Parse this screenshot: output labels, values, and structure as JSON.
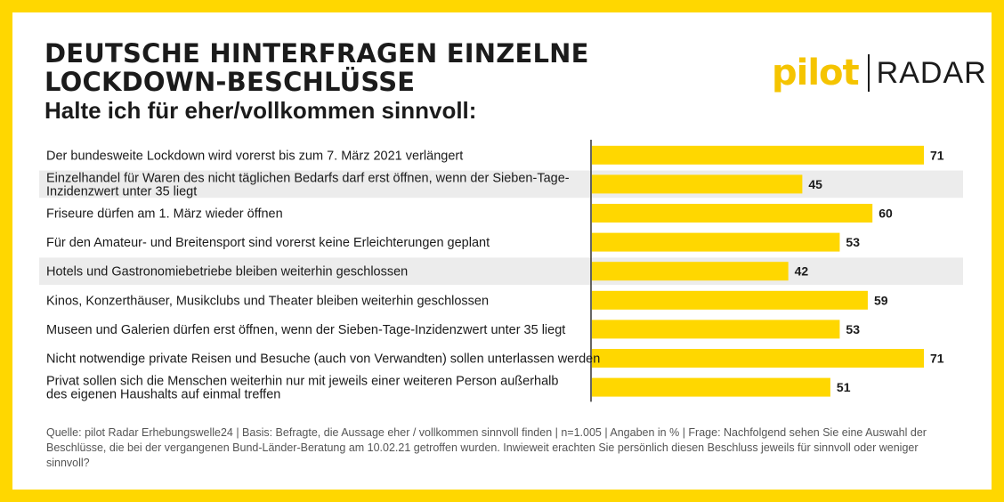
{
  "title": "DEUTSCHE HINTERFRAGEN EINZELNE LOCKDOWN-BESCHLÜSSE",
  "subtitle": "Halte ich für eher/vollkommen sinnvoll:",
  "logo": {
    "brand": "pilot",
    "product": "RADAR"
  },
  "footer": "Quelle: pilot Radar Erhebungswelle24 | Basis: Befragte, die Aussage eher / vollkommen sinnvoll finden | n=1.005 | Angaben in % | Frage: Nachfolgend sehen Sie eine Auswahl der Beschlüsse, die bei der vergangenen Bund-Länder-Beratung am 10.02.21 getroffen wurden. Inwieweit erachten Sie persönlich diesen Beschluss jeweils für sinnvoll oder weniger sinnvoll?",
  "colors": {
    "bar": "#ffd700",
    "frame": "#ffd700",
    "row_shade": "#ececec",
    "text": "#1b1b1b"
  },
  "chart_data": {
    "type": "bar",
    "orientation": "horizontal",
    "categories": [
      [
        "Der bundesweite Lockdown wird vorerst bis zum 7. März 2021 verlängert"
      ],
      [
        "Einzelhandel für Waren des nicht täglichen Bedarfs darf erst öffnen, wenn der Sieben-Tage-",
        "Inzidenzwert unter 35 liegt"
      ],
      [
        "Friseure dürfen am 1. März wieder öffnen"
      ],
      [
        "Für den Amateur- und Breitensport sind vorerst keine Erleichterungen geplant"
      ],
      [
        "Hotels und Gastronomiebetriebe bleiben weiterhin geschlossen"
      ],
      [
        "Kinos, Konzerthäuser, Musikclubs und Theater bleiben weiterhin geschlossen"
      ],
      [
        "Museen und Galerien dürfen erst öffnen, wenn der Sieben-Tage-Inzidenzwert unter 35 liegt"
      ],
      [
        "Nicht notwendige private Reisen und Besuche (auch von Verwandten) sollen unterlassen werden"
      ],
      [
        "Privat sollen sich die Menschen weiterhin nur mit jeweils einer weiteren Person außerhalb",
        "des eigenen Haushalts auf einmal treffen"
      ]
    ],
    "values": [
      71,
      45,
      60,
      53,
      42,
      59,
      53,
      71,
      51
    ],
    "shaded_rows": [
      1,
      4
    ],
    "xlim": [
      0,
      75
    ],
    "unit": "%"
  }
}
